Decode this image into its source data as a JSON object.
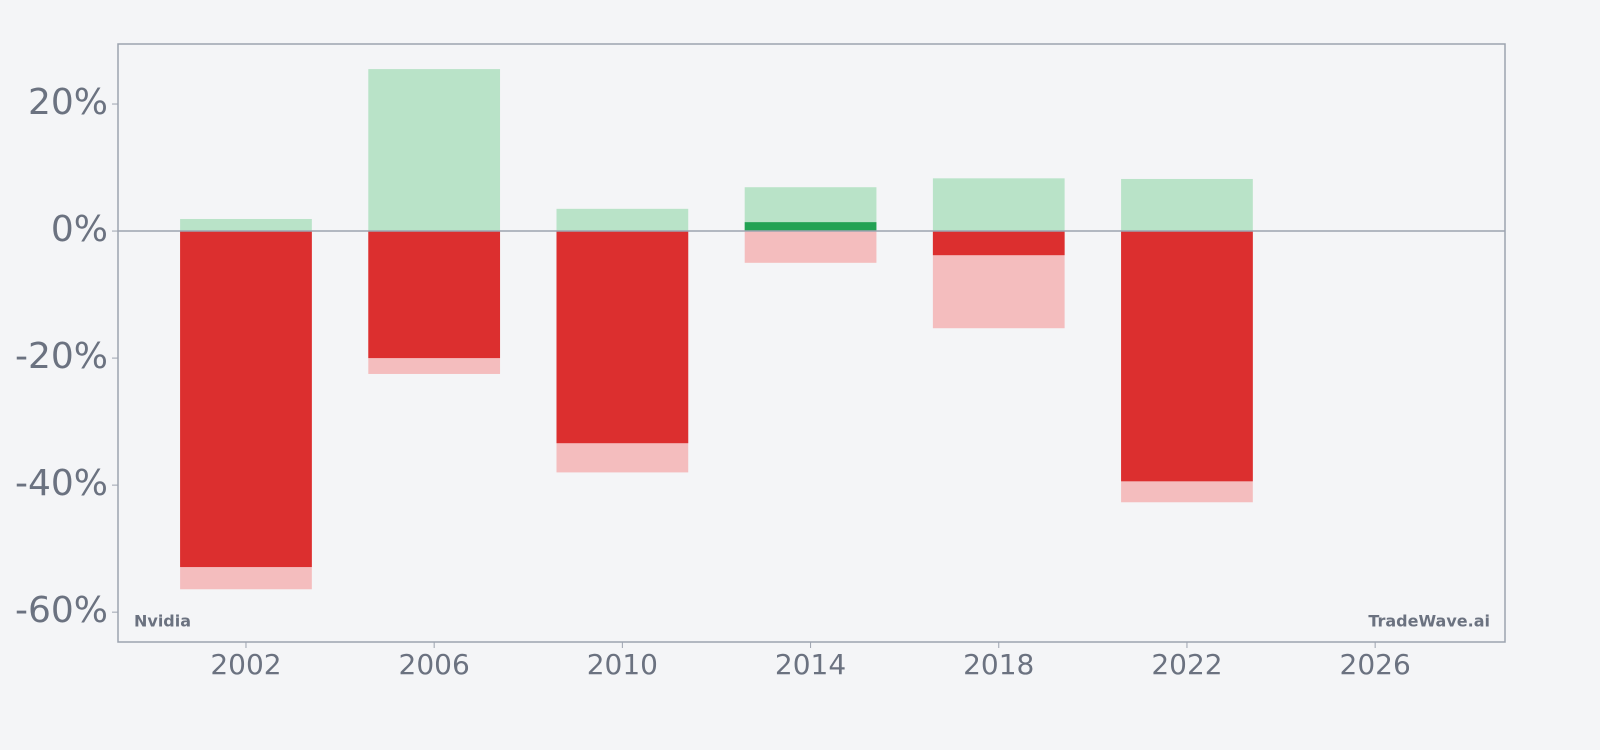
{
  "chart_data": {
    "type": "bar",
    "x": [
      2002,
      2006,
      2010,
      2014,
      2018,
      2022
    ],
    "series": [
      {
        "color": "#b9e3c8",
        "values": [
          1.9,
          25.5,
          3.5,
          6.9,
          8.3,
          8.2
        ]
      },
      {
        "color": "#f4bdbe",
        "values": [
          -56.4,
          -22.5,
          -38.0,
          -5.0,
          -15.3,
          -42.7
        ]
      },
      {
        "colors": [
          "#dc2f2f",
          "#dc2f2f",
          "#dc2f2f",
          "#22a253",
          "#dc2f2f",
          "#dc2f2f"
        ],
        "values": [
          -52.9,
          -20.0,
          -33.4,
          1.4,
          -3.8,
          -39.4
        ]
      }
    ],
    "xlim": [
      1999.28,
      2028.76
    ],
    "xticks": [
      2002,
      2006,
      2010,
      2014,
      2018,
      2022,
      2026
    ],
    "ylim": [
      -64.7,
      29.45
    ],
    "yticks": [
      {
        "value": -60,
        "label": "-60%"
      },
      {
        "value": -40,
        "label": "-40%"
      },
      {
        "value": -20,
        "label": "-20%"
      },
      {
        "value": 0,
        "label": "0%"
      },
      {
        "value": 20,
        "label": "20%"
      }
    ],
    "annotations": [
      "Nvidia",
      "TradeWave.ai"
    ]
  }
}
